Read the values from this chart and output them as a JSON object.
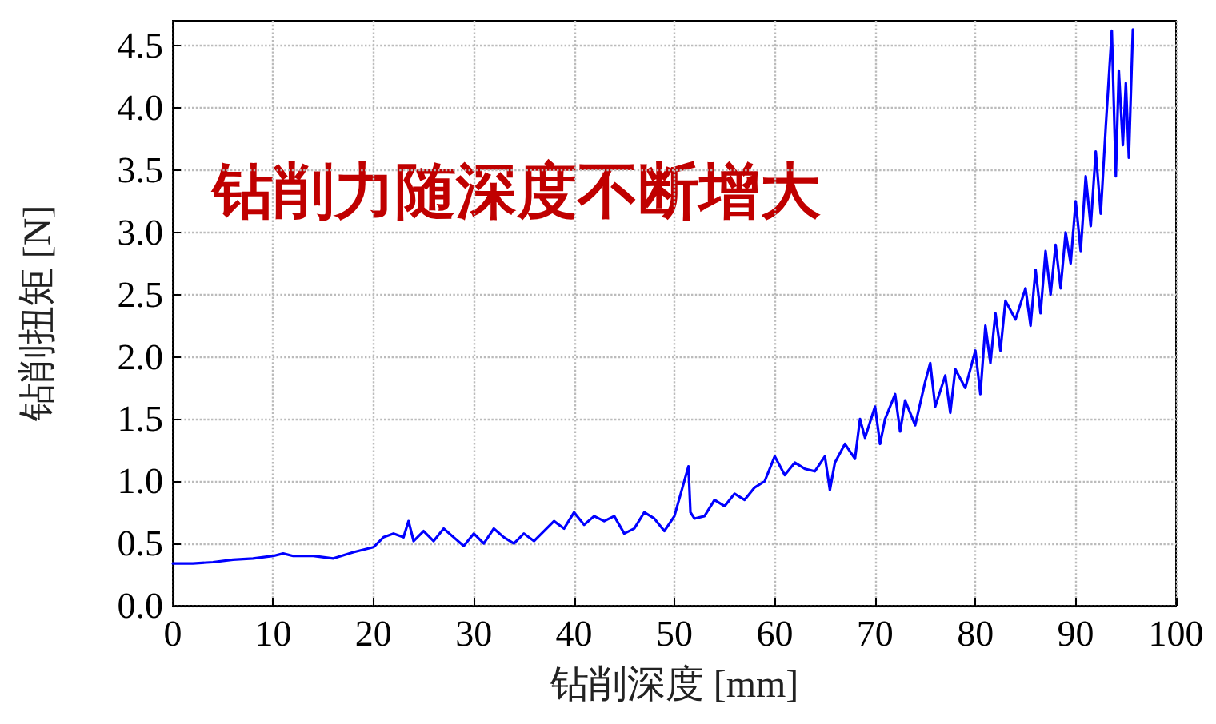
{
  "chart_data": {
    "type": "line",
    "xlabel": "钻削深度 [mm]",
    "ylabel": "钻削扭矩 [N]",
    "annotations": [
      "钻削力随深度不断增大"
    ],
    "series": [
      {
        "color": "#0000ff",
        "x": [
          0,
          2,
          4,
          6,
          8,
          10,
          11,
          12,
          14,
          16,
          18,
          20,
          21,
          22,
          23,
          23.5,
          24,
          25,
          26,
          27,
          28,
          29,
          30,
          31,
          32,
          33,
          34,
          35,
          36,
          37,
          38,
          39,
          40,
          41,
          42,
          43,
          44,
          45,
          46,
          47,
          48,
          49,
          50,
          51.4,
          51.6,
          52,
          53,
          54,
          55,
          56,
          57,
          58,
          59,
          60,
          61,
          62,
          63,
          64,
          65,
          65.5,
          66,
          67,
          68,
          68.5,
          69,
          70,
          70.5,
          71,
          72,
          72.5,
          73,
          74,
          75,
          75.5,
          76,
          77,
          77.5,
          78,
          79,
          80,
          80.5,
          81,
          81.5,
          82,
          82.5,
          83,
          84,
          85,
          85.5,
          86,
          86.5,
          87,
          87.5,
          88,
          88.5,
          89,
          89.5,
          90,
          90.5,
          91,
          91.5,
          92,
          92.5,
          93,
          93.6,
          94,
          94.3,
          94.7,
          95,
          95.3,
          95.7
        ],
        "values": [
          0.34,
          0.34,
          0.35,
          0.37,
          0.38,
          0.4,
          0.42,
          0.4,
          0.4,
          0.38,
          0.43,
          0.47,
          0.55,
          0.58,
          0.55,
          0.68,
          0.52,
          0.6,
          0.52,
          0.62,
          0.55,
          0.48,
          0.58,
          0.5,
          0.62,
          0.55,
          0.5,
          0.58,
          0.52,
          0.6,
          0.68,
          0.62,
          0.75,
          0.65,
          0.72,
          0.68,
          0.72,
          0.58,
          0.62,
          0.75,
          0.7,
          0.6,
          0.72,
          1.12,
          0.75,
          0.7,
          0.72,
          0.85,
          0.8,
          0.9,
          0.85,
          0.95,
          1.0,
          1.2,
          1.05,
          1.15,
          1.1,
          1.08,
          1.2,
          0.93,
          1.15,
          1.3,
          1.18,
          1.5,
          1.35,
          1.6,
          1.3,
          1.5,
          1.7,
          1.4,
          1.65,
          1.45,
          1.8,
          1.95,
          1.6,
          1.85,
          1.55,
          1.9,
          1.75,
          2.05,
          1.7,
          2.25,
          1.95,
          2.35,
          2.05,
          2.45,
          2.3,
          2.55,
          2.25,
          2.7,
          2.35,
          2.85,
          2.5,
          2.9,
          2.55,
          3.0,
          2.75,
          3.25,
          2.85,
          3.45,
          3.05,
          3.65,
          3.15,
          3.85,
          4.62,
          3.45,
          4.3,
          3.7,
          4.2,
          3.6,
          4.63
        ]
      }
    ],
    "xlim": [
      0,
      100
    ],
    "xticks": [
      0,
      10,
      20,
      30,
      40,
      50,
      60,
      70,
      80,
      90,
      100
    ],
    "ylim": [
      0,
      4.7
    ],
    "yticks": [
      {
        "value": 0,
        "label": "0.0"
      },
      0.5,
      {
        "value": 1,
        "label": "1.0"
      },
      1.5,
      {
        "value": 2,
        "label": "2.0"
      },
      2.5,
      {
        "value": 3,
        "label": "3.0"
      },
      3.5,
      {
        "value": 4,
        "label": "4.0"
      },
      4.5
    ],
    "grid": true,
    "marker": "none",
    "line_style": "solid"
  }
}
